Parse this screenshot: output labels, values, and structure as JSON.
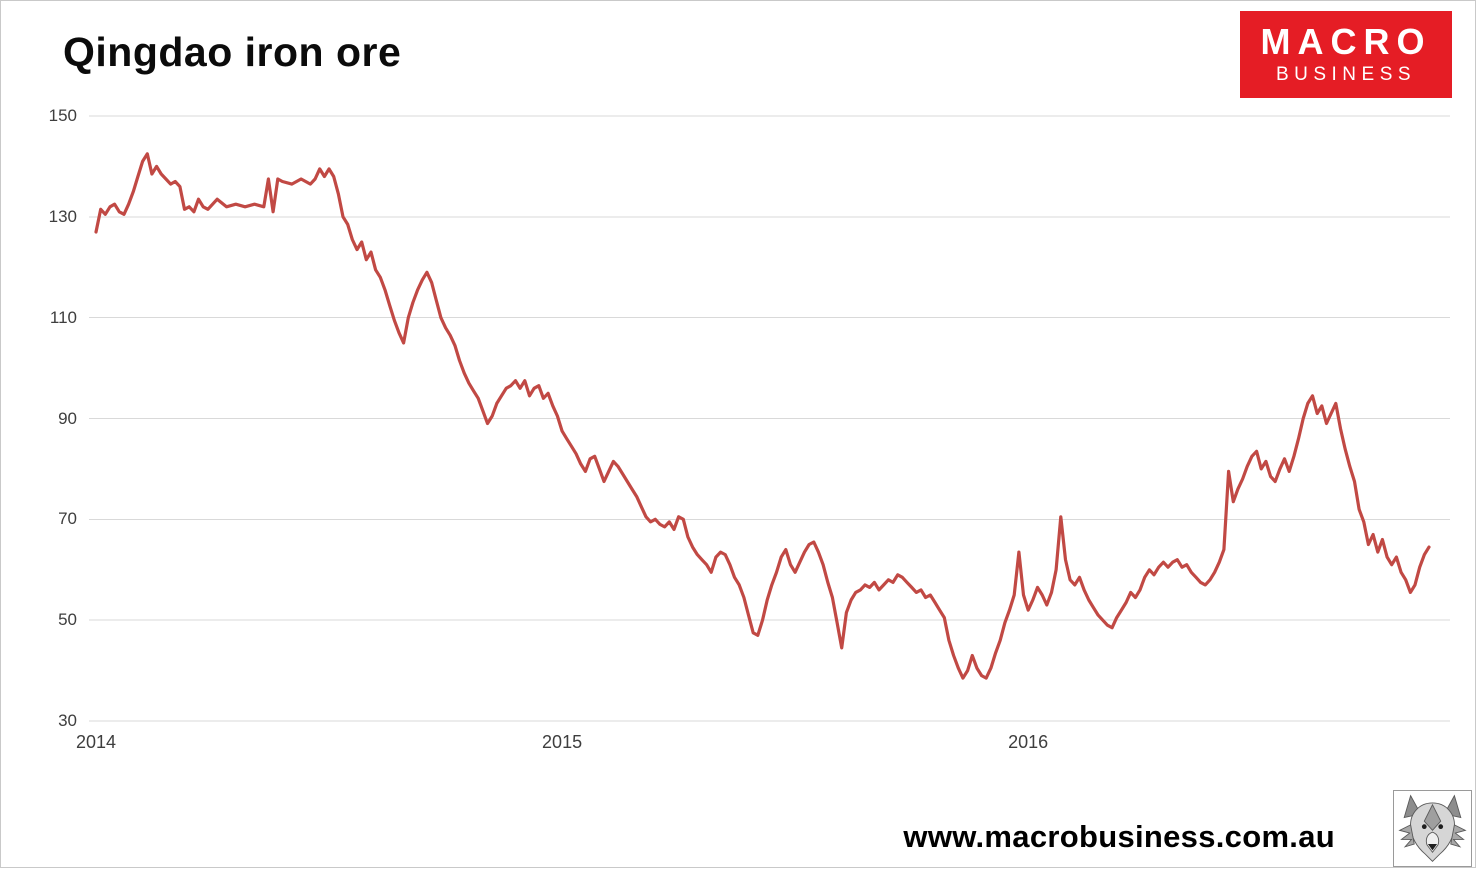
{
  "logo": {
    "line1": "MACRO",
    "line2": "BUSINESS",
    "bg_color": "#E51D25",
    "text_color": "#FFFFFF"
  },
  "footer": {
    "website": "www.macrobusiness.com.au",
    "wolf_logo_icon": "wolf-head-logo"
  },
  "chart_data": {
    "type": "line",
    "title": "Qingdao iron ore",
    "xlabel": "",
    "ylabel": "",
    "legend": "none",
    "grid": "horizontal-only",
    "grid_color": "#D9D9D9",
    "x_ticks": [
      {
        "label": "2014",
        "value": 2014
      },
      {
        "label": "2015",
        "value": 2015
      },
      {
        "label": "2016",
        "value": 2016
      }
    ],
    "y_ticks": [
      150,
      130,
      110,
      90,
      70,
      50,
      30
    ],
    "xlim": [
      2013.985,
      2016.905
    ],
    "ylim": [
      30,
      150
    ],
    "series": [
      {
        "name": "Qingdao iron ore",
        "color": "#C14944",
        "points": [
          [
            2014.0,
            127
          ],
          [
            2014.01,
            131.5
          ],
          [
            2014.02,
            130.5
          ],
          [
            2014.03,
            132
          ],
          [
            2014.04,
            132.5
          ],
          [
            2014.05,
            131
          ],
          [
            2014.06,
            130.5
          ],
          [
            2014.07,
            132.5
          ],
          [
            2014.08,
            135
          ],
          [
            2014.09,
            138
          ],
          [
            2014.1,
            141
          ],
          [
            2014.11,
            142.5
          ],
          [
            2014.12,
            138.5
          ],
          [
            2014.13,
            140
          ],
          [
            2014.14,
            138.5
          ],
          [
            2014.15,
            137.5
          ],
          [
            2014.16,
            136.5
          ],
          [
            2014.17,
            137
          ],
          [
            2014.18,
            136
          ],
          [
            2014.19,
            131.5
          ],
          [
            2014.2,
            132
          ],
          [
            2014.21,
            131
          ],
          [
            2014.22,
            133.5
          ],
          [
            2014.23,
            132
          ],
          [
            2014.24,
            131.5
          ],
          [
            2014.26,
            133.5
          ],
          [
            2014.28,
            132
          ],
          [
            2014.3,
            132.5
          ],
          [
            2014.32,
            132
          ],
          [
            2014.34,
            132.5
          ],
          [
            2014.36,
            132
          ],
          [
            2014.37,
            137.5
          ],
          [
            2014.38,
            131
          ],
          [
            2014.39,
            137.5
          ],
          [
            2014.4,
            137
          ],
          [
            2014.42,
            136.5
          ],
          [
            2014.44,
            137.5
          ],
          [
            2014.46,
            136.5
          ],
          [
            2014.47,
            137.5
          ],
          [
            2014.48,
            139.5
          ],
          [
            2014.49,
            138
          ],
          [
            2014.5,
            139.5
          ],
          [
            2014.51,
            138
          ],
          [
            2014.52,
            134.5
          ],
          [
            2014.53,
            130
          ],
          [
            2014.54,
            128.5
          ],
          [
            2014.55,
            125.5
          ],
          [
            2014.56,
            123.5
          ],
          [
            2014.57,
            125
          ],
          [
            2014.58,
            121.5
          ],
          [
            2014.59,
            123
          ],
          [
            2014.6,
            119.5
          ],
          [
            2014.61,
            118
          ],
          [
            2014.62,
            115.5
          ],
          [
            2014.63,
            112.5
          ],
          [
            2014.64,
            109.5
          ],
          [
            2014.65,
            107
          ],
          [
            2014.66,
            105
          ],
          [
            2014.67,
            110
          ],
          [
            2014.68,
            113
          ],
          [
            2014.69,
            115.5
          ],
          [
            2014.7,
            117.5
          ],
          [
            2014.71,
            119
          ],
          [
            2014.72,
            117
          ],
          [
            2014.73,
            113.5
          ],
          [
            2014.74,
            110
          ],
          [
            2014.75,
            108
          ],
          [
            2014.76,
            106.5
          ],
          [
            2014.77,
            104.5
          ],
          [
            2014.78,
            101.5
          ],
          [
            2014.79,
            99
          ],
          [
            2014.8,
            97
          ],
          [
            2014.81,
            95.5
          ],
          [
            2014.82,
            94
          ],
          [
            2014.83,
            91.5
          ],
          [
            2014.84,
            89
          ],
          [
            2014.85,
            90.5
          ],
          [
            2014.86,
            93
          ],
          [
            2014.87,
            94.5
          ],
          [
            2014.88,
            96
          ],
          [
            2014.89,
            96.5
          ],
          [
            2014.9,
            97.5
          ],
          [
            2014.91,
            96
          ],
          [
            2014.92,
            97.5
          ],
          [
            2014.93,
            94.5
          ],
          [
            2014.94,
            96
          ],
          [
            2014.95,
            96.5
          ],
          [
            2014.96,
            94
          ],
          [
            2014.97,
            95
          ],
          [
            2014.98,
            92.5
          ],
          [
            2014.99,
            90.5
          ],
          [
            2015.0,
            87.5
          ],
          [
            2015.01,
            86
          ],
          [
            2015.02,
            84.5
          ],
          [
            2015.03,
            83
          ],
          [
            2015.04,
            81
          ],
          [
            2015.05,
            79.5
          ],
          [
            2015.06,
            82
          ],
          [
            2015.07,
            82.5
          ],
          [
            2015.08,
            80
          ],
          [
            2015.09,
            77.5
          ],
          [
            2015.1,
            79.5
          ],
          [
            2015.11,
            81.5
          ],
          [
            2015.12,
            80.5
          ],
          [
            2015.13,
            79
          ],
          [
            2015.14,
            77.5
          ],
          [
            2015.15,
            76
          ],
          [
            2015.16,
            74.5
          ],
          [
            2015.17,
            72.5
          ],
          [
            2015.18,
            70.5
          ],
          [
            2015.19,
            69.5
          ],
          [
            2015.2,
            70
          ],
          [
            2015.21,
            69
          ],
          [
            2015.22,
            68.5
          ],
          [
            2015.23,
            69.5
          ],
          [
            2015.24,
            68
          ],
          [
            2015.25,
            70.5
          ],
          [
            2015.26,
            70
          ],
          [
            2015.27,
            66.5
          ],
          [
            2015.28,
            64.5
          ],
          [
            2015.29,
            63
          ],
          [
            2015.3,
            62
          ],
          [
            2015.31,
            61
          ],
          [
            2015.32,
            59.5
          ],
          [
            2015.33,
            62.5
          ],
          [
            2015.34,
            63.5
          ],
          [
            2015.35,
            63
          ],
          [
            2015.36,
            61
          ],
          [
            2015.37,
            58.5
          ],
          [
            2015.38,
            57
          ],
          [
            2015.39,
            54.5
          ],
          [
            2015.4,
            51
          ],
          [
            2015.41,
            47.5
          ],
          [
            2015.42,
            47
          ],
          [
            2015.43,
            50
          ],
          [
            2015.44,
            54
          ],
          [
            2015.45,
            57
          ],
          [
            2015.46,
            59.5
          ],
          [
            2015.47,
            62.5
          ],
          [
            2015.48,
            64
          ],
          [
            2015.49,
            61
          ],
          [
            2015.5,
            59.5
          ],
          [
            2015.51,
            61.5
          ],
          [
            2015.52,
            63.5
          ],
          [
            2015.53,
            65
          ],
          [
            2015.54,
            65.5
          ],
          [
            2015.55,
            63.5
          ],
          [
            2015.56,
            61
          ],
          [
            2015.57,
            57.5
          ],
          [
            2015.58,
            54.5
          ],
          [
            2015.59,
            49.5
          ],
          [
            2015.6,
            44.5
          ],
          [
            2015.61,
            51.5
          ],
          [
            2015.62,
            54
          ],
          [
            2015.63,
            55.5
          ],
          [
            2015.64,
            56
          ],
          [
            2015.65,
            57
          ],
          [
            2015.66,
            56.5
          ],
          [
            2015.67,
            57.5
          ],
          [
            2015.68,
            56
          ],
          [
            2015.69,
            57
          ],
          [
            2015.7,
            58
          ],
          [
            2015.71,
            57.5
          ],
          [
            2015.72,
            59
          ],
          [
            2015.73,
            58.5
          ],
          [
            2015.74,
            57.5
          ],
          [
            2015.75,
            56.5
          ],
          [
            2015.76,
            55.5
          ],
          [
            2015.77,
            56
          ],
          [
            2015.78,
            54.5
          ],
          [
            2015.79,
            55
          ],
          [
            2015.8,
            53.5
          ],
          [
            2015.81,
            52
          ],
          [
            2015.82,
            50.5
          ],
          [
            2015.83,
            46
          ],
          [
            2015.84,
            43
          ],
          [
            2015.85,
            40.5
          ],
          [
            2015.86,
            38.5
          ],
          [
            2015.87,
            40
          ],
          [
            2015.88,
            43
          ],
          [
            2015.89,
            40.5
          ],
          [
            2015.9,
            39
          ],
          [
            2015.91,
            38.5
          ],
          [
            2015.92,
            40.5
          ],
          [
            2015.93,
            43.5
          ],
          [
            2015.94,
            46
          ],
          [
            2015.95,
            49.5
          ],
          [
            2015.96,
            52
          ],
          [
            2015.97,
            55
          ],
          [
            2015.98,
            63.5
          ],
          [
            2015.99,
            55
          ],
          [
            2016.0,
            52
          ],
          [
            2016.01,
            54
          ],
          [
            2016.02,
            56.5
          ],
          [
            2016.03,
            55
          ],
          [
            2016.04,
            53
          ],
          [
            2016.05,
            55.5
          ],
          [
            2016.06,
            60
          ],
          [
            2016.07,
            70.5
          ],
          [
            2016.08,
            62
          ],
          [
            2016.09,
            58
          ],
          [
            2016.1,
            57
          ],
          [
            2016.11,
            58.5
          ],
          [
            2016.12,
            56
          ],
          [
            2016.13,
            54
          ],
          [
            2016.14,
            52.5
          ],
          [
            2016.15,
            51
          ],
          [
            2016.16,
            50
          ],
          [
            2016.17,
            49
          ],
          [
            2016.18,
            48.5
          ],
          [
            2016.19,
            50.5
          ],
          [
            2016.2,
            52
          ],
          [
            2016.21,
            53.5
          ],
          [
            2016.22,
            55.5
          ],
          [
            2016.23,
            54.5
          ],
          [
            2016.24,
            56
          ],
          [
            2016.25,
            58.5
          ],
          [
            2016.26,
            60
          ],
          [
            2016.27,
            59
          ],
          [
            2016.28,
            60.5
          ],
          [
            2016.29,
            61.5
          ],
          [
            2016.3,
            60.5
          ],
          [
            2016.31,
            61.5
          ],
          [
            2016.32,
            62
          ],
          [
            2016.33,
            60.5
          ],
          [
            2016.34,
            61
          ],
          [
            2016.35,
            59.5
          ],
          [
            2016.36,
            58.5
          ],
          [
            2016.37,
            57.5
          ],
          [
            2016.38,
            57
          ],
          [
            2016.39,
            58
          ],
          [
            2016.4,
            59.5
          ],
          [
            2016.41,
            61.5
          ],
          [
            2016.42,
            64
          ],
          [
            2016.43,
            79.5
          ],
          [
            2016.44,
            73.5
          ],
          [
            2016.45,
            76
          ],
          [
            2016.46,
            78
          ],
          [
            2016.47,
            80.5
          ],
          [
            2016.48,
            82.5
          ],
          [
            2016.49,
            83.5
          ],
          [
            2016.5,
            80
          ],
          [
            2016.51,
            81.5
          ],
          [
            2016.52,
            78.5
          ],
          [
            2016.53,
            77.5
          ],
          [
            2016.54,
            80
          ],
          [
            2016.55,
            82
          ],
          [
            2016.56,
            79.5
          ],
          [
            2016.57,
            82.5
          ],
          [
            2016.58,
            86
          ],
          [
            2016.59,
            90
          ],
          [
            2016.6,
            93
          ],
          [
            2016.61,
            94.5
          ],
          [
            2016.62,
            91
          ],
          [
            2016.63,
            92.5
          ],
          [
            2016.64,
            89
          ],
          [
            2016.65,
            91
          ],
          [
            2016.66,
            93
          ],
          [
            2016.67,
            88
          ],
          [
            2016.68,
            84
          ],
          [
            2016.69,
            80.5
          ],
          [
            2016.7,
            77.5
          ],
          [
            2016.71,
            72
          ],
          [
            2016.72,
            69.5
          ],
          [
            2016.73,
            65
          ],
          [
            2016.74,
            67
          ],
          [
            2016.75,
            63.5
          ],
          [
            2016.76,
            66
          ],
          [
            2016.77,
            62.5
          ],
          [
            2016.78,
            61
          ],
          [
            2016.79,
            62.5
          ],
          [
            2016.8,
            59.5
          ],
          [
            2016.81,
            58
          ],
          [
            2016.82,
            55.5
          ],
          [
            2016.83,
            57
          ],
          [
            2016.84,
            60.5
          ],
          [
            2016.85,
            63
          ],
          [
            2016.86,
            64.5
          ]
        ]
      }
    ]
  }
}
